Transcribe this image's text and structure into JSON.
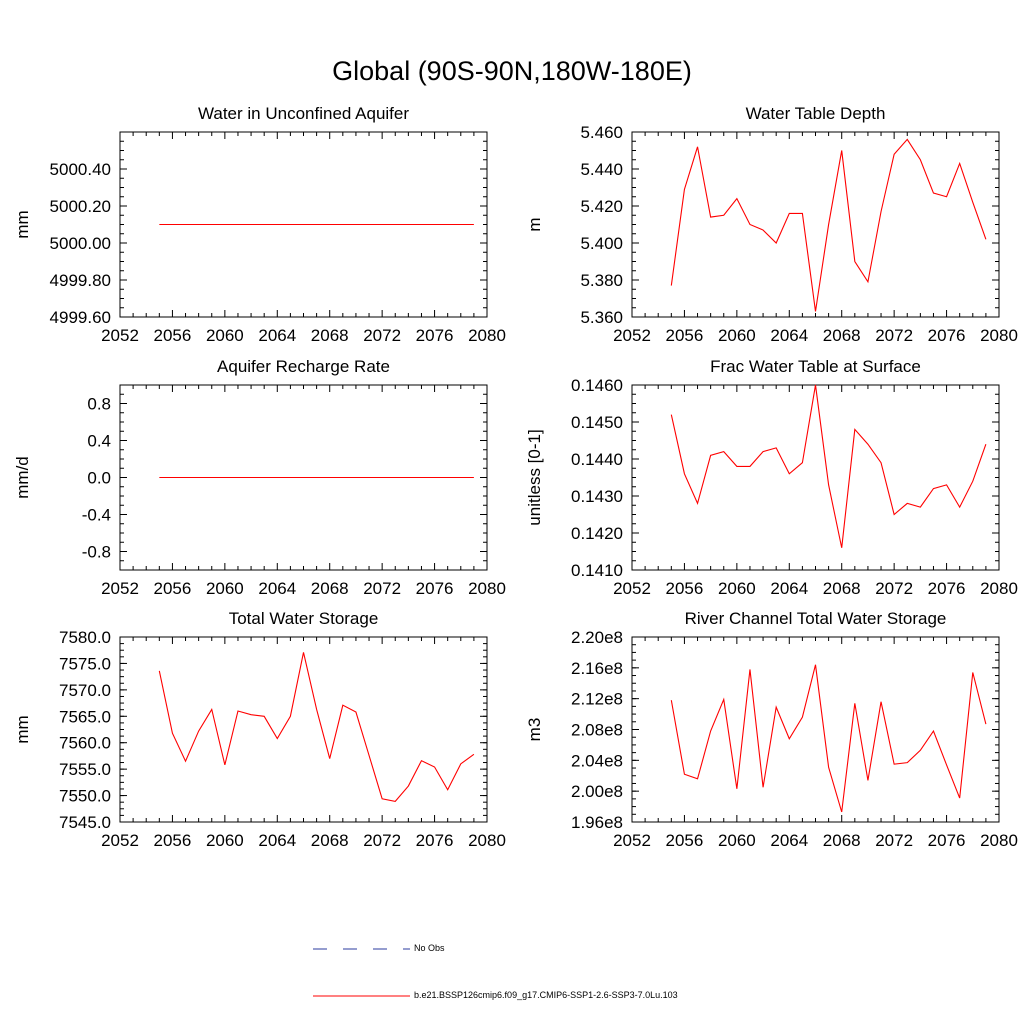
{
  "title": "Global (90S-90N,180W-180E)",
  "colors": {
    "series": "#ff0000",
    "obs": "#2b3b9f",
    "axis": "#000000"
  },
  "legend": {
    "obs_label": "No Obs",
    "series_label": "b.e21.BSSP126cmip6.f09_g17.CMIP6-SSP1-2.6-SSP3-7.0Lu.103"
  },
  "chart_data": [
    {
      "type": "line",
      "title": "Water in Unconfined Aquifer",
      "ylabel": "mm",
      "xlim": [
        2052,
        2080
      ],
      "ylim": [
        4999.6,
        5000.6
      ],
      "xticks": [
        2052,
        2056,
        2060,
        2064,
        2068,
        2072,
        2076,
        2080
      ],
      "yticks": [
        4999.6,
        4999.8,
        5000.0,
        5000.2,
        5000.4
      ],
      "ytick_labels": [
        "4999.60",
        "4999.80",
        "5000.00",
        "5000.20",
        "5000.40"
      ],
      "series": [
        {
          "x": [
            2055,
            2079
          ],
          "y": [
            5000.1,
            5000.1
          ]
        }
      ]
    },
    {
      "type": "line",
      "title": "Water Table Depth",
      "ylabel": "m",
      "xlim": [
        2052,
        2080
      ],
      "ylim": [
        5.36,
        5.46
      ],
      "xticks": [
        2052,
        2056,
        2060,
        2064,
        2068,
        2072,
        2076,
        2080
      ],
      "yticks": [
        5.36,
        5.38,
        5.4,
        5.42,
        5.44,
        5.46
      ],
      "ytick_labels": [
        "5.360",
        "5.380",
        "5.400",
        "5.420",
        "5.440",
        "5.460"
      ],
      "series": [
        {
          "x": [
            2055,
            2056,
            2057,
            2058,
            2059,
            2060,
            2061,
            2062,
            2063,
            2064,
            2065,
            2066,
            2067,
            2068,
            2069,
            2070,
            2071,
            2072,
            2073,
            2074,
            2075,
            2076,
            2077,
            2078,
            2079
          ],
          "y": [
            5.377,
            5.429,
            5.452,
            5.414,
            5.415,
            5.424,
            5.41,
            5.407,
            5.4,
            5.416,
            5.416,
            5.363,
            5.41,
            5.45,
            5.39,
            5.379,
            5.417,
            5.448,
            5.456,
            5.445,
            5.427,
            5.425,
            5.443,
            5.422,
            5.402
          ]
        }
      ]
    },
    {
      "type": "line",
      "title": "Aquifer Recharge Rate",
      "ylabel": "mm/d",
      "xlim": [
        2052,
        2080
      ],
      "ylim": [
        -1.0,
        1.0
      ],
      "xticks": [
        2052,
        2056,
        2060,
        2064,
        2068,
        2072,
        2076,
        2080
      ],
      "yticks": [
        -0.8,
        -0.4,
        0.0,
        0.4,
        0.8
      ],
      "ytick_labels": [
        "-0.8",
        "-0.4",
        "0.0",
        "0.4",
        "0.8"
      ],
      "series": [
        {
          "x": [
            2055,
            2079
          ],
          "y": [
            0.0,
            0.0
          ]
        }
      ]
    },
    {
      "type": "line",
      "title": "Frac Water Table at Surface",
      "ylabel": "unitless [0-1]",
      "xlim": [
        2052,
        2080
      ],
      "ylim": [
        0.141,
        0.146
      ],
      "xticks": [
        2052,
        2056,
        2060,
        2064,
        2068,
        2072,
        2076,
        2080
      ],
      "yticks": [
        0.141,
        0.142,
        0.143,
        0.144,
        0.145,
        0.146
      ],
      "ytick_labels": [
        "0.1410",
        "0.1420",
        "0.1430",
        "0.1440",
        "0.1450",
        "0.1460"
      ],
      "series": [
        {
          "x": [
            2055,
            2056,
            2057,
            2058,
            2059,
            2060,
            2061,
            2062,
            2063,
            2064,
            2065,
            2066,
            2067,
            2068,
            2069,
            2070,
            2071,
            2072,
            2073,
            2074,
            2075,
            2076,
            2077,
            2078,
            2079
          ],
          "y": [
            0.1452,
            0.1436,
            0.1428,
            0.1441,
            0.1442,
            0.1438,
            0.1438,
            0.1442,
            0.1443,
            0.1436,
            0.1439,
            0.146,
            0.1433,
            0.1416,
            0.1448,
            0.1444,
            0.1439,
            0.1425,
            0.1428,
            0.1427,
            0.1432,
            0.1433,
            0.1427,
            0.1434,
            0.1444
          ]
        }
      ]
    },
    {
      "type": "line",
      "title": "Total Water Storage",
      "ylabel": "mm",
      "xlim": [
        2052,
        2080
      ],
      "ylim": [
        7545.0,
        7580.0
      ],
      "xticks": [
        2052,
        2056,
        2060,
        2064,
        2068,
        2072,
        2076,
        2080
      ],
      "yticks": [
        7545,
        7550,
        7555,
        7560,
        7565,
        7570,
        7575,
        7580
      ],
      "ytick_labels": [
        "7545.0",
        "7550.0",
        "7555.0",
        "7560.0",
        "7565.0",
        "7570.0",
        "7575.0",
        "7580.0"
      ],
      "series": [
        {
          "x": [
            2055,
            2056,
            2057,
            2058,
            2059,
            2060,
            2061,
            2062,
            2063,
            2064,
            2065,
            2066,
            2067,
            2068,
            2069,
            2070,
            2071,
            2072,
            2073,
            2074,
            2075,
            2076,
            2077,
            2078,
            2079
          ],
          "y": [
            7573.6,
            7561.8,
            7556.5,
            7562.2,
            7566.3,
            7555.8,
            7566.0,
            7565.3,
            7565.0,
            7560.8,
            7565.0,
            7577.1,
            7566.3,
            7557.0,
            7567.1,
            7565.8,
            7557.6,
            7549.4,
            7548.9,
            7551.8,
            7556.6,
            7555.4,
            7551.1,
            7556.0,
            7557.8
          ]
        }
      ]
    },
    {
      "type": "line",
      "title": "River Channel Total Water Storage",
      "ylabel": "m3",
      "xlim": [
        2052,
        2080
      ],
      "ylim": [
        196000000.0,
        220000000.0
      ],
      "xticks": [
        2052,
        2056,
        2060,
        2064,
        2068,
        2072,
        2076,
        2080
      ],
      "yticks": [
        196000000.0,
        200000000.0,
        204000000.0,
        208000000.0,
        212000000.0,
        216000000.0,
        220000000.0
      ],
      "ytick_labels": [
        "1.96e8",
        "2.00e8",
        "2.04e8",
        "2.08e8",
        "2.12e8",
        "2.16e8",
        "2.20e8"
      ],
      "series": [
        {
          "x": [
            2055,
            2056,
            2057,
            2058,
            2059,
            2060,
            2061,
            2062,
            2063,
            2064,
            2065,
            2066,
            2067,
            2068,
            2069,
            2070,
            2071,
            2072,
            2073,
            2074,
            2075,
            2076,
            2077,
            2078,
            2079
          ],
          "y": [
            211800000.0,
            202200000.0,
            201600000.0,
            207800000.0,
            211900000.0,
            200300000.0,
            215800000.0,
            200500000.0,
            210900000.0,
            206800000.0,
            209600000.0,
            216400000.0,
            203100000.0,
            197300000.0,
            211400000.0,
            201400000.0,
            211600000.0,
            203500000.0,
            203700000.0,
            205300000.0,
            207800000.0,
            203400000.0,
            199100000.0,
            215400000.0,
            208700000.0
          ]
        }
      ]
    }
  ]
}
